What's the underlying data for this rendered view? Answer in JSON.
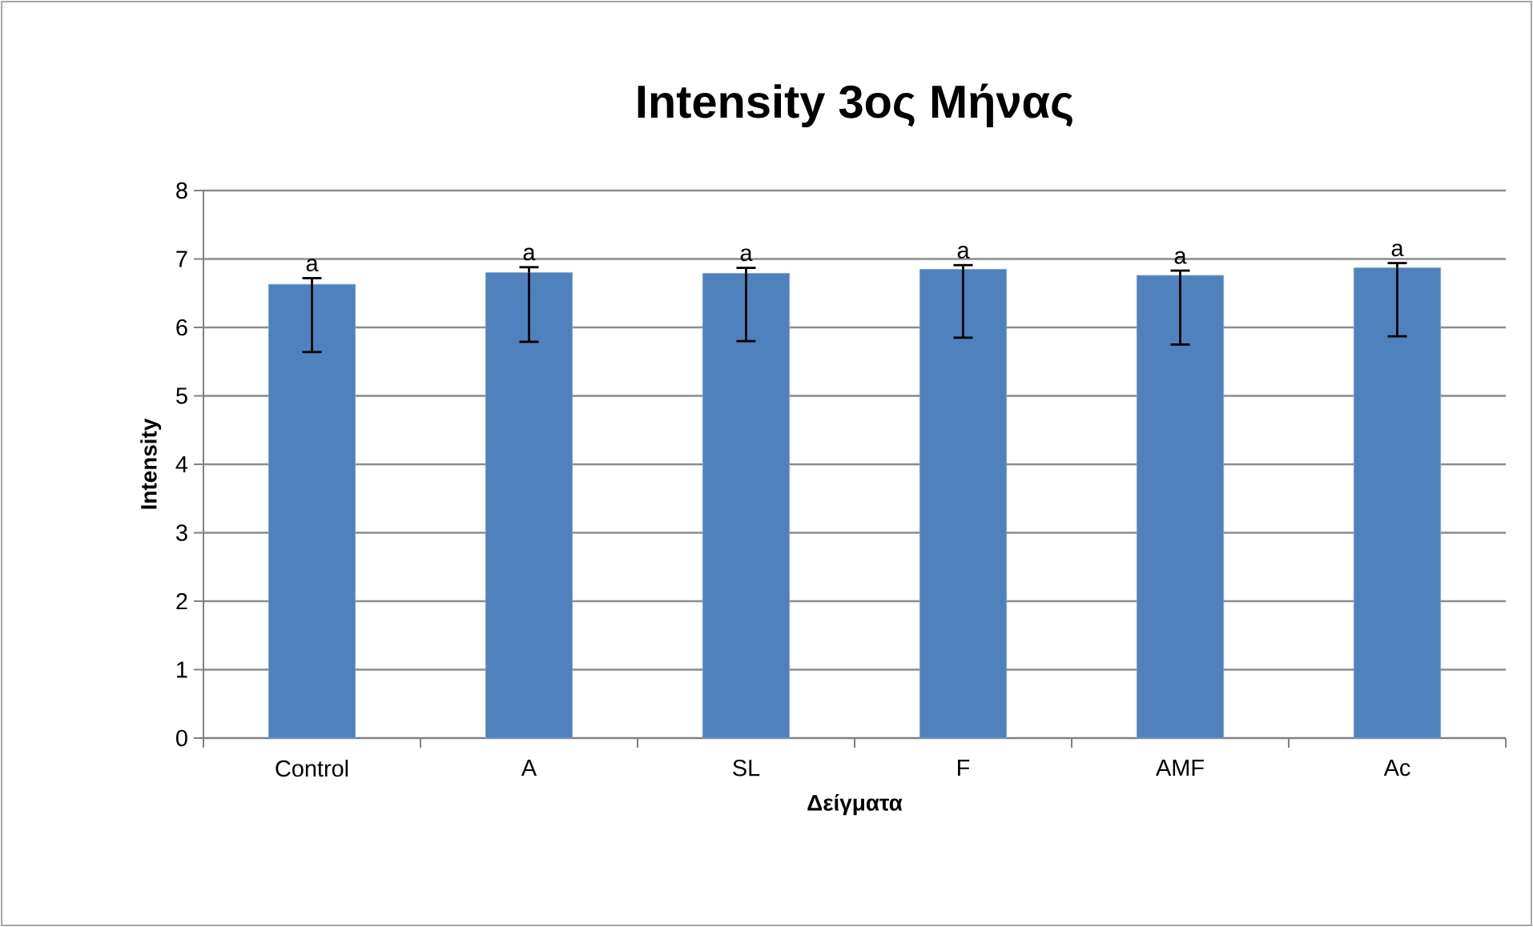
{
  "chart_data": {
    "type": "bar",
    "title": "Intensity 3ος Μήνας",
    "xlabel": "Δείγματα",
    "ylabel": "Intensity",
    "categories": [
      "Control",
      "A",
      "SL",
      "F",
      "AMF",
      "Ac"
    ],
    "values": [
      6.63,
      6.8,
      6.79,
      6.85,
      6.76,
      6.87
    ],
    "errors": [
      [
        5.64,
        6.72
      ],
      [
        5.79,
        6.88
      ],
      [
        5.8,
        6.87
      ],
      [
        5.85,
        6.91
      ],
      [
        5.75,
        6.83
      ],
      [
        5.87,
        6.94
      ]
    ],
    "value_labels": [
      "a",
      "a",
      "a",
      "a",
      "a",
      "a"
    ],
    "color": "#4f81bd",
    "ylim": [
      0,
      8
    ],
    "yticks": [
      0,
      1,
      2,
      3,
      4,
      5,
      6,
      7,
      8
    ],
    "grid": "y"
  }
}
